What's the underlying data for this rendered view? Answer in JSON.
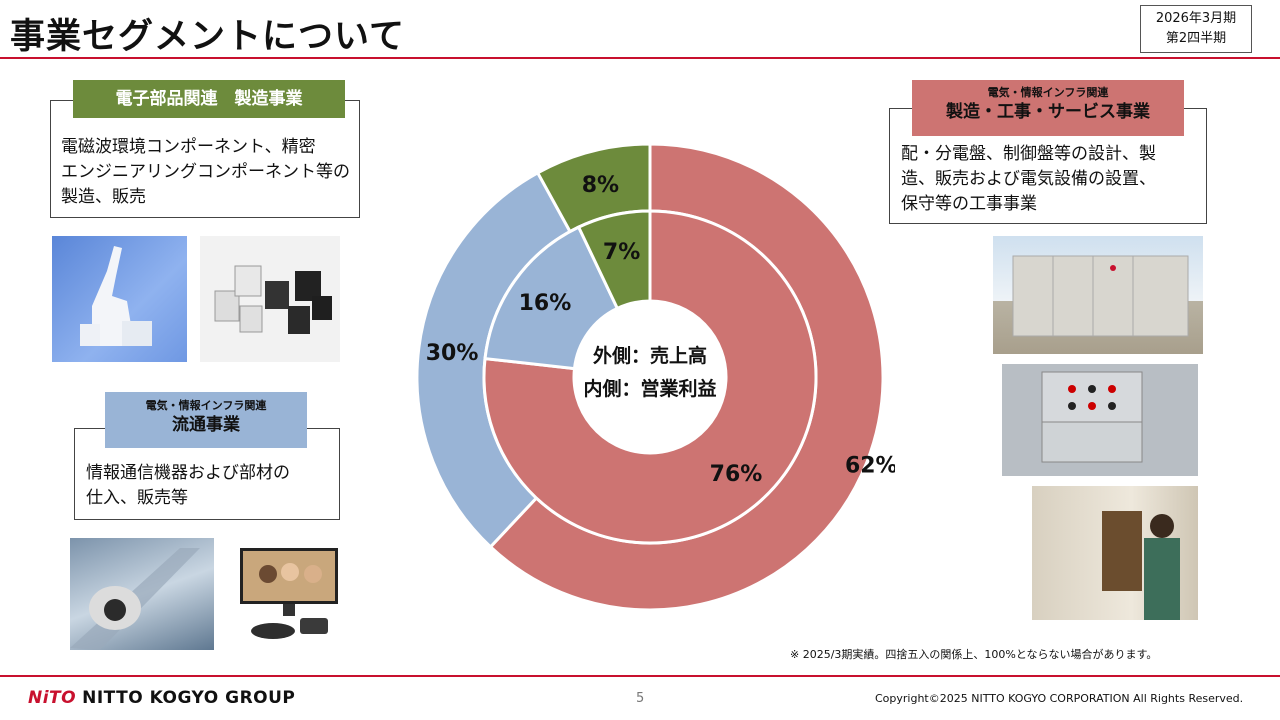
{
  "header": {
    "title": "事業セグメントについて",
    "period_line1": "2026年3月期",
    "period_line2": "第2四半期"
  },
  "segments": {
    "electronics": {
      "tag": "電子部品関連　製造事業",
      "description_lines": [
        "電磁波環境コンポーネント、精密",
        "エンジニアリングコンポーネント等の",
        "製造、販売"
      ],
      "color": "#6d8b3c"
    },
    "distribution": {
      "tag_small": "電気・情報インフラ関連",
      "tag_big": "流通事業",
      "description_lines": [
        "情報通信機器および部材の",
        "仕入、販売等"
      ],
      "color": "#99b4d6"
    },
    "manufacturing": {
      "tag_small": "電気・情報インフラ関連",
      "tag_big": "製造・工事・サービス事業",
      "description_lines": [
        "配・分電盤、制御盤等の設計、製",
        "造、販売および電気設備の設置、",
        "保守等の工事事業"
      ],
      "color": "#cd7472"
    }
  },
  "chart_data": {
    "type": "pie",
    "center_label_line1": "外側：売上高",
    "center_label_line2": "内側：営業利益",
    "rings": [
      {
        "ring": "outer",
        "values": [
          62,
          30,
          8
        ],
        "labels": [
          "62%",
          "30%",
          "8%"
        ]
      },
      {
        "ring": "inner",
        "values": [
          76,
          16,
          7
        ],
        "labels": [
          "76%",
          "16%",
          "7%"
        ]
      }
    ],
    "colors": [
      "#cd7472",
      "#99b4d6",
      "#6d8b3c"
    ]
  },
  "footer": {
    "note": "※ 2025/3期実績。四捨五入の関係上、100%とならない場合があります。",
    "logo_mark": "NiTO",
    "logo_text": "NITTO KOGYO GROUP",
    "page": "5",
    "copyright": "Copyright©2025 NITTO KOGYO CORPORATION All Rights Reserved."
  }
}
